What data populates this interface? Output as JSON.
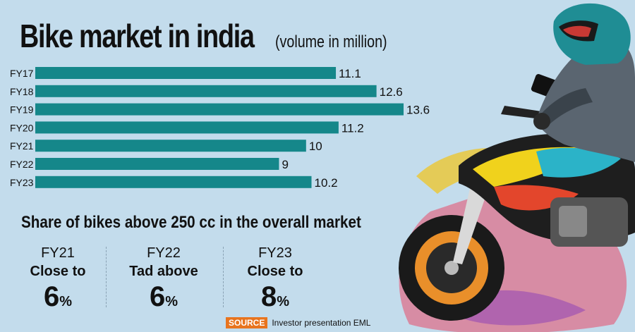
{
  "title": "Bike market in india",
  "subtitle": "(volume in million)",
  "chart_data": {
    "type": "bar",
    "orientation": "horizontal",
    "title": "Bike market in india",
    "subtitle": "(volume in million)",
    "categories": [
      "FY17",
      "FY18",
      "FY19",
      "FY20",
      "FY21",
      "FY22",
      "FY23"
    ],
    "values": [
      11.1,
      12.6,
      13.6,
      11.2,
      10,
      9,
      10.2
    ],
    "value_labels": [
      "11.1",
      "12.6",
      "13.6",
      "11.2",
      "10",
      "9",
      "10.2"
    ],
    "xlim": [
      0,
      13.6
    ],
    "grid": false,
    "bar_color": "#15878a"
  },
  "share": {
    "title": "Share of bikes above 250 cc in the overall market",
    "items": [
      {
        "year": "FY21",
        "desc": "Close to",
        "value": "6",
        "unit": "%"
      },
      {
        "year": "FY22",
        "desc": "Tad above",
        "value": "6",
        "unit": "%"
      },
      {
        "year": "FY23",
        "desc": "Close to",
        "value": "8",
        "unit": "%"
      }
    ]
  },
  "source": {
    "label": "SOURCE",
    "text": "Investor presentation EML"
  },
  "colors": {
    "background": "#c3dcec",
    "bar": "#15878a",
    "source_tag": "#e8741e"
  }
}
